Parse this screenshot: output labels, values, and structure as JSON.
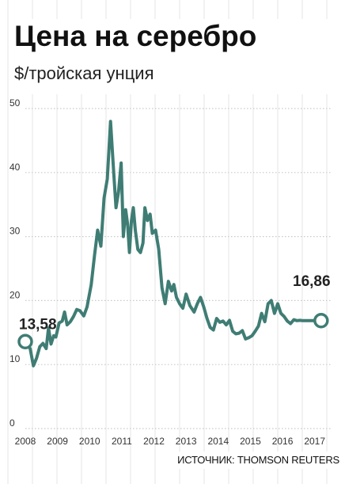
{
  "header": {
    "title": "Цена на серебро",
    "subtitle": "$/тройская унция"
  },
  "footer": {
    "source": "ИСТОЧНИК: THOMSON REUTERS"
  },
  "colors": {
    "line": "#3f7d74",
    "grid": "#c9c9c9",
    "background_grid": "#e6e6e6"
  },
  "chart_data": {
    "type": "line",
    "ylim": [
      0,
      50
    ],
    "xlim": [
      2008,
      2017.5
    ],
    "y_ticks": [
      "0",
      "10",
      "20",
      "30",
      "40",
      "50"
    ],
    "x_ticks": [
      "2008",
      "2009",
      "2010",
      "2011",
      "2012",
      "2013",
      "2014",
      "2015",
      "2016",
      "2017"
    ],
    "annotations": {
      "start": "13,58",
      "end": "16,86"
    },
    "grid": "horizontal-dotted",
    "series": [
      {
        "x": [
          2008.0,
          2008.15,
          2008.25,
          2008.35,
          2008.45,
          2008.55,
          2008.65,
          2008.72,
          2008.8,
          2008.88,
          2008.95,
          2009.05,
          2009.15,
          2009.22,
          2009.3,
          2009.4,
          2009.5,
          2009.6,
          2009.7,
          2009.82,
          2009.92,
          2010.05,
          2010.15,
          2010.25,
          2010.35,
          2010.45,
          2010.55,
          2010.65,
          2010.75,
          2010.82,
          2010.9,
          2010.98,
          2011.05,
          2011.12,
          2011.18,
          2011.24,
          2011.3,
          2011.36,
          2011.42,
          2011.5,
          2011.58,
          2011.66,
          2011.72,
          2011.8,
          2011.88,
          2011.95,
          2012.05,
          2012.15,
          2012.25,
          2012.35,
          2012.45,
          2012.55,
          2012.62,
          2012.7,
          2012.8,
          2012.9,
          2013.0,
          2013.12,
          2013.25,
          2013.35,
          2013.45,
          2013.55,
          2013.65,
          2013.75,
          2013.85,
          2013.95,
          2014.05,
          2014.15,
          2014.25,
          2014.35,
          2014.45,
          2014.55,
          2014.65,
          2014.75,
          2014.85,
          2014.95,
          2015.05,
          2015.15,
          2015.25,
          2015.35,
          2015.45,
          2015.55,
          2015.65,
          2015.75,
          2015.85,
          2015.95,
          2016.05,
          2016.15,
          2016.25,
          2016.35,
          2016.45,
          2016.55,
          2016.62,
          2016.7,
          2016.8,
          2016.9,
          2017.0,
          2017.1,
          2017.2
        ],
        "y": [
          13.58,
          12.5,
          9.8,
          11.0,
          12.8,
          13.3,
          12.5,
          15.7,
          13.2,
          14.5,
          14.3,
          16.5,
          16.8,
          18.2,
          16.2,
          16.7,
          17.5,
          18.6,
          18.4,
          17.6,
          19.0,
          22.5,
          27.0,
          31.0,
          28.5,
          36.0,
          39.0,
          48.0,
          40.0,
          34.5,
          37.0,
          41.5,
          30.0,
          34.2,
          32.0,
          27.5,
          32.5,
          34.5,
          31.0,
          28.0,
          27.5,
          29.0,
          34.5,
          32.5,
          33.5,
          30.5,
          31.0,
          28.0,
          22.0,
          19.5,
          23.0,
          21.5,
          22.5,
          20.5,
          19.5,
          18.8,
          21.0,
          19.2,
          18.2,
          19.5,
          20.5,
          19.0,
          17.2,
          15.8,
          15.4,
          17.2,
          16.6,
          16.8,
          16.2,
          16.9,
          15.2,
          14.8,
          14.9,
          15.3,
          14.0,
          14.2,
          14.5,
          15.2,
          16.0,
          18.0,
          16.7,
          19.5,
          20.0,
          18.0,
          19.5,
          18.0,
          17.5,
          16.8,
          16.4,
          17.0,
          16.86,
          16.9,
          16.86,
          16.86,
          16.86,
          16.86,
          16.86,
          16.86,
          16.86
        ]
      }
    ]
  }
}
